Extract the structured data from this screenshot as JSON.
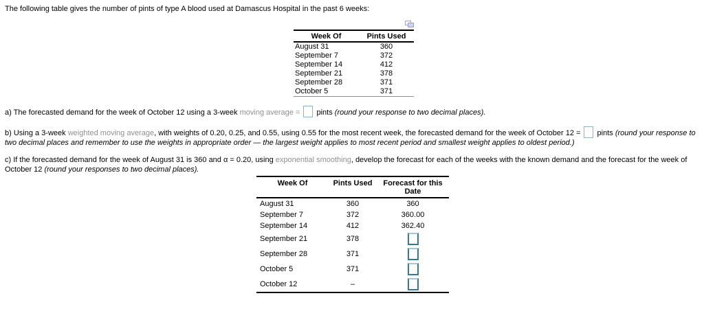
{
  "intro": "The following table gives the number of pints of type A blood used at Damascus Hospital in the past 6 weeks:",
  "colors": {
    "term_gray": "#8f8f8f",
    "inline_answer_box_border": "#92b4cb",
    "table_answer_box_border": "#2e7b9c",
    "popup_icon_blue": "#97a3d6"
  },
  "icons": {
    "popup": "popup-window-icon"
  },
  "table1": {
    "headers": [
      "Week Of",
      "Pints Used"
    ],
    "rows": [
      [
        "August 31",
        "360"
      ],
      [
        "September 7",
        "372"
      ],
      [
        "September 14",
        "412"
      ],
      [
        "September 21",
        "378"
      ],
      [
        "September 28",
        "371"
      ],
      [
        "October 5",
        "371"
      ]
    ]
  },
  "part_a": {
    "prefix": "a) The forecasted demand for the week of October 12 using a 3-week ",
    "term": "moving average",
    "equals": " = ",
    "after_box": " pints ",
    "note": "(round your response to two decimal places)."
  },
  "part_b": {
    "prefix": "b) Using a 3-week ",
    "term": "weighted moving average",
    "middle": ", with weights of 0.20, 0.25, and 0.55, using 0.55 for the most recent week, the forecasted demand for the week of October 12 = ",
    "after_box": " pints ",
    "note": "(round your response to two decimal places and remember to use the weights in appropriate order — the largest weight applies to most recent period and smallest weight applies to oldest period.)"
  },
  "part_c": {
    "prefix": "c) If the forecasted demand for the week of August 31 is 360 and α = 0.20, using ",
    "term": "exponential smoothing",
    "middle": ", develop the forecast for each of the weeks with the known demand and the forecast for the week of October 12 ",
    "note": "(round your responses to two decimal places)."
  },
  "table2": {
    "headers": [
      "Week Of",
      "Pints Used",
      "Forecast for this Date"
    ],
    "rows": [
      {
        "week": "August 31",
        "pints": "360",
        "forecast": "360",
        "input": false
      },
      {
        "week": "September 7",
        "pints": "372",
        "forecast": "360.00",
        "input": false
      },
      {
        "week": "September 14",
        "pints": "412",
        "forecast": "362.40",
        "input": false
      },
      {
        "week": "September 21",
        "pints": "378",
        "forecast": "",
        "input": true
      },
      {
        "week": "September 28",
        "pints": "371",
        "forecast": "",
        "input": true
      },
      {
        "week": "October 5",
        "pints": "371",
        "forecast": "",
        "input": true
      },
      {
        "week": "October 12",
        "pints": "–",
        "forecast": "",
        "input": true
      }
    ]
  }
}
